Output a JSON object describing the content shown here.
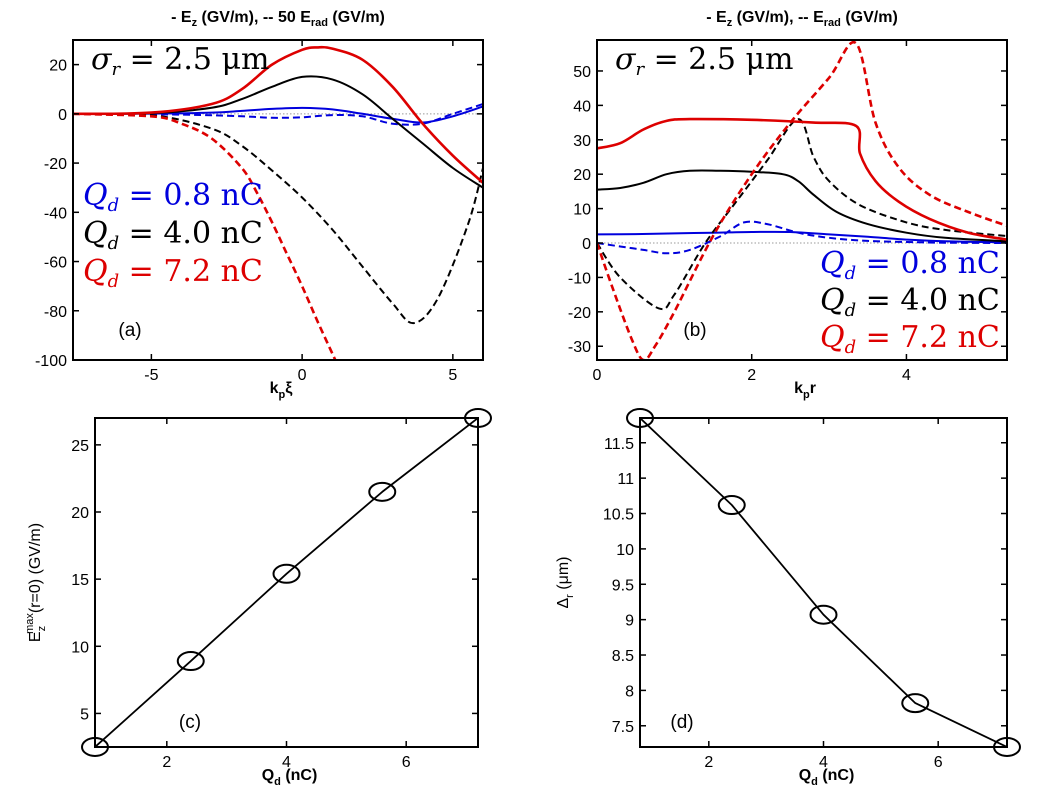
{
  "colors": {
    "blue": "#0000dd",
    "black": "#000000",
    "red": "#dd0000",
    "dotted": "#999999"
  },
  "chart_data": [
    {
      "id": "a",
      "type": "line",
      "title_solid": "- E",
      "title_sub_z": "z",
      "title_unit": " (GV/m),   -- 50 E",
      "title_sub_rad": "rad",
      "title_unit2": " (GV/m)",
      "xlabel": "k",
      "xlabel_sub": "p",
      "xlabel_var": "ξ",
      "panel_label": "(a)",
      "sigma_label": "σ",
      "sigma_sub": "r",
      "sigma_value": " = 2.5 μm",
      "legend": [
        {
          "q": "Q",
          "sub": "d",
          "value": " = 0.8 nC",
          "color": "blue"
        },
        {
          "q": "Q",
          "sub": "d",
          "value": " = 4.0 nC",
          "color": "black"
        },
        {
          "q": "Q",
          "sub": "d",
          "value": " = 7.2 nC",
          "color": "red"
        }
      ],
      "xlim": [
        -7.6,
        6
      ],
      "ylim": [
        -100,
        30
      ],
      "xticks": [
        -5,
        0,
        5
      ],
      "xtick_labels": [
        "-5",
        "0",
        "5"
      ],
      "yticks": [
        -100,
        -80,
        -60,
        -40,
        -20,
        0,
        20
      ],
      "ytick_labels": [
        "-100",
        "-80",
        "-60",
        "-40",
        "-20",
        "0",
        "20"
      ],
      "series": [
        {
          "name": "Ez 0.8nC",
          "color": "blue",
          "dash": "solid",
          "x": [
            -7.6,
            -5,
            -3,
            -2,
            -1,
            0,
            1,
            2,
            3,
            4,
            5,
            6
          ],
          "y": [
            0,
            0.1,
            0.5,
            1.2,
            2,
            2.4,
            1.8,
            0,
            -2,
            -3.5,
            -1,
            3
          ]
        },
        {
          "name": "50 Erad 0.8nC",
          "color": "blue",
          "dash": "dash",
          "x": [
            -7.6,
            -4,
            -2,
            -1,
            0,
            1,
            2,
            3,
            4,
            5,
            6
          ],
          "y": [
            0,
            -0.3,
            -1,
            -1.6,
            -1.4,
            -0.5,
            -1,
            -4,
            -4,
            0,
            4
          ]
        },
        {
          "name": "Ez 4.0nC",
          "color": "black",
          "dash": "solid",
          "x": [
            -7.6,
            -5,
            -3,
            -2,
            -1,
            0,
            1,
            2,
            3,
            4,
            5,
            6
          ],
          "y": [
            0,
            0.3,
            2.5,
            6,
            11,
            15,
            14,
            8,
            -2,
            -12,
            -22,
            -30
          ]
        },
        {
          "name": "50 Erad 4.0nC",
          "color": "black",
          "dash": "dash",
          "x": [
            -7.6,
            -5,
            -3,
            -2,
            -1,
            0,
            1,
            2,
            3,
            3.7,
            4.5,
            5.5,
            6
          ],
          "y": [
            0,
            -0.5,
            -6,
            -13,
            -23,
            -34,
            -47,
            -62,
            -77,
            -85,
            -75,
            -45,
            -22
          ]
        },
        {
          "name": "Ez 7.2nC",
          "color": "red",
          "dash": "solid",
          "x": [
            -7.6,
            -5,
            -3,
            -2,
            -1,
            0,
            0.5,
            1,
            2,
            3,
            4,
            5,
            6
          ],
          "y": [
            0,
            0.5,
            4,
            10,
            20,
            26,
            27,
            26.5,
            22,
            11,
            -4,
            -17,
            -28
          ]
        },
        {
          "name": "50 Erad 7.2nC",
          "color": "red",
          "dash": "dash",
          "x": [
            -7.6,
            -5,
            -4,
            -3,
            -2,
            -1.5,
            -1,
            -0.5,
            0,
            0.5,
            1.1
          ],
          "y": [
            0,
            -1,
            -4,
            -10,
            -22,
            -32,
            -44,
            -57,
            -70,
            -84,
            -100
          ]
        }
      ],
      "zero_line": true
    },
    {
      "id": "b",
      "type": "line",
      "title_solid": "- E",
      "title_sub_z": "z",
      "title_unit": " (GV/m),   -- E",
      "title_sub_rad": "rad",
      "title_unit2": " (GV/m)",
      "xlabel": "k",
      "xlabel_sub": "p",
      "xlabel_var": "r",
      "panel_label": "(b)",
      "sigma_label": "σ",
      "sigma_sub": "r",
      "sigma_value": " = 2.5 μm",
      "legend": [
        {
          "q": "Q",
          "sub": "d",
          "value": " = 0.8 nC",
          "color": "blue"
        },
        {
          "q": "Q",
          "sub": "d",
          "value": " = 4.0 nC",
          "color": "black"
        },
        {
          "q": "Q",
          "sub": "d",
          "value": " = 7.2 nC",
          "color": "red"
        }
      ],
      "xlim": [
        0,
        5.3
      ],
      "ylim": [
        -34,
        59
      ],
      "xticks": [
        0,
        2,
        4
      ],
      "xtick_labels": [
        "0",
        "2",
        "4"
      ],
      "yticks": [
        -30,
        -20,
        -10,
        0,
        10,
        20,
        30,
        40,
        50
      ],
      "ytick_labels": [
        "-30",
        "-20",
        "-10",
        "0",
        "10",
        "20",
        "30",
        "40",
        "50"
      ],
      "series": [
        {
          "name": "Ez 0.8nC",
          "color": "blue",
          "dash": "solid",
          "x": [
            0,
            0.5,
            1,
            1.5,
            2,
            2.5,
            3,
            3.5,
            4,
            4.5,
            5.3
          ],
          "y": [
            2.5,
            2.6,
            2.8,
            3,
            3.2,
            3.2,
            2.5,
            1.8,
            1,
            0.5,
            0.2
          ]
        },
        {
          "name": "Erad 0.8nC",
          "color": "blue",
          "dash": "dash",
          "x": [
            0,
            0.3,
            0.6,
            0.9,
            1.2,
            1.6,
            1.9,
            2.2,
            2.6,
            3,
            3.5,
            4,
            4.5,
            5.3
          ],
          "y": [
            0,
            -1,
            -2,
            -3,
            -2,
            2,
            6,
            5.5,
            3,
            1.5,
            0.6,
            0.3,
            0.1,
            0
          ]
        },
        {
          "name": "Ez 4.0nC",
          "color": "black",
          "dash": "solid",
          "x": [
            0,
            0.3,
            0.6,
            0.9,
            1.2,
            1.6,
            2,
            2.4,
            2.6,
            2.8,
            3.1,
            3.5,
            4,
            4.5,
            5.3
          ],
          "y": [
            15.5,
            16,
            17.5,
            20,
            21,
            21,
            20.7,
            20,
            18,
            14,
            9,
            5.5,
            3,
            1.5,
            0.5
          ]
        },
        {
          "name": "Erad 4.0nC",
          "color": "black",
          "dash": "dash",
          "x": [
            0,
            0.3,
            0.8,
            1,
            1.4,
            1.8,
            2.2,
            2.6,
            2.8,
            3,
            3.4,
            4,
            4.5,
            5.3
          ],
          "y": [
            0,
            -10,
            -19,
            -15,
            0,
            12,
            24,
            36,
            25,
            18,
            11,
            6,
            3.8,
            2
          ]
        },
        {
          "name": "Ez 7.2nC",
          "color": "red",
          "dash": "solid",
          "x": [
            0,
            0.3,
            0.6,
            0.9,
            1.2,
            2,
            2.8,
            3.35,
            3.4,
            3.6,
            3.9,
            4.3,
            4.8,
            5.3
          ],
          "y": [
            27.5,
            29,
            33,
            35.5,
            36,
            35.8,
            35,
            34,
            26,
            18,
            12,
            7,
            3,
            1
          ]
        },
        {
          "name": "Erad 7.2nC",
          "color": "red",
          "dash": "dash",
          "x": [
            0,
            0.2,
            0.45,
            0.6,
            0.75,
            1,
            1.5,
            2,
            2.5,
            3,
            3.35,
            3.6,
            3.9,
            4.3,
            4.8,
            5.3
          ],
          "y": [
            0,
            -13,
            -28,
            -34,
            -30,
            -20,
            2,
            20,
            35,
            48,
            58,
            35,
            22,
            14,
            9,
            5
          ]
        }
      ],
      "zero_line": true
    },
    {
      "id": "c",
      "type": "line",
      "xlabel": "Q",
      "xlabel_sub": "d",
      "xlabel_unit": " (nC)",
      "ylabel": "E",
      "ylabel_sub": "z",
      "ylabel_sup": "max",
      "ylabel_tail": "(r=0) (GV/m)",
      "panel_label": "(c)",
      "xlim": [
        0.8,
        7.2
      ],
      "ylim": [
        2.5,
        27
      ],
      "xticks": [
        2,
        4,
        6
      ],
      "xtick_labels": [
        "2",
        "4",
        "6"
      ],
      "yticks": [
        5,
        10,
        15,
        20,
        25
      ],
      "ytick_labels": [
        "5",
        "10",
        "15",
        "20",
        "25"
      ],
      "series": [
        {
          "name": "Ez max",
          "color": "black",
          "dash": "solid",
          "marker": "circle",
          "x": [
            0.8,
            2.4,
            4.0,
            5.6,
            7.2
          ],
          "y": [
            2.5,
            8.9,
            15.4,
            21.5,
            27.0
          ]
        }
      ]
    },
    {
      "id": "d",
      "type": "line",
      "xlabel": "Q",
      "xlabel_sub": "d",
      "xlabel_unit": " (nC)",
      "ylabel": "Δ",
      "ylabel_sub": "r",
      "ylabel_tail": " (μm)",
      "panel_label": "(d)",
      "xlim": [
        0.8,
        7.2
      ],
      "ylim": [
        7.2,
        11.85
      ],
      "xticks": [
        2,
        4,
        6
      ],
      "xtick_labels": [
        "2",
        "4",
        "6"
      ],
      "yticks": [
        7.5,
        8,
        8.5,
        9,
        9.5,
        10,
        10.5,
        11,
        11.5
      ],
      "ytick_labels": [
        "7.5",
        "8",
        "8.5",
        "9",
        "9.5",
        "10",
        "10.5",
        "11",
        "11.5"
      ],
      "series": [
        {
          "name": "Delta r",
          "color": "black",
          "dash": "solid",
          "marker": "circle",
          "x": [
            0.8,
            2.4,
            4.0,
            5.6,
            7.2
          ],
          "y": [
            11.85,
            10.62,
            9.07,
            7.82,
            7.2
          ]
        }
      ]
    }
  ]
}
